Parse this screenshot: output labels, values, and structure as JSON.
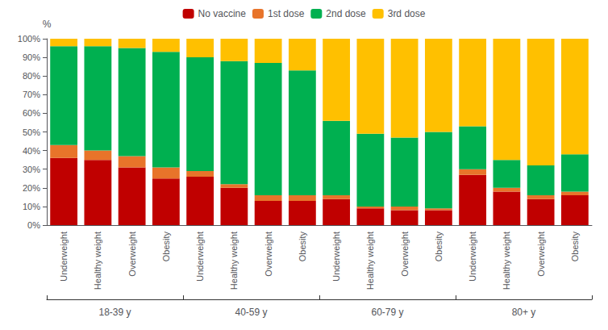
{
  "chart_data": {
    "type": "bar",
    "stacked": true,
    "categories": [
      "Underweight",
      "Healthy weight",
      "Overweight",
      "Obesity",
      "Underweight",
      "Healthy weight",
      "Overweight",
      "Obesity",
      "Underweight",
      "Healthy weight",
      "Overweight",
      "Obesity",
      "Underweight",
      "Healthy weight",
      "Overweight",
      "Obesity"
    ],
    "annotations": [
      "18-39 y",
      "40-59 y",
      "60-79 y",
      "80+ y"
    ],
    "series": [
      {
        "name": "No vaccine",
        "color": "#C00000",
        "values": [
          36,
          35,
          31,
          25,
          26,
          20,
          13,
          13,
          14,
          9,
          8,
          8,
          27,
          18,
          14,
          16
        ]
      },
      {
        "name": "1st dose",
        "color": "#E8742A",
        "values": [
          7,
          5,
          6,
          6,
          3,
          2,
          3,
          3,
          2,
          1,
          2,
          1,
          3,
          2,
          2,
          2
        ]
      },
      {
        "name": "2nd dose",
        "color": "#00B050",
        "values": [
          53,
          56,
          58,
          62,
          61,
          66,
          71,
          67,
          40,
          39,
          37,
          41,
          23,
          15,
          16,
          20
        ]
      },
      {
        "name": "3rd dose",
        "color": "#FFC000",
        "values": [
          4,
          4,
          5,
          7,
          10,
          12,
          13,
          17,
          44,
          51,
          53,
          50,
          47,
          65,
          68,
          62
        ]
      }
    ],
    "y_label": "%",
    "ylim": [
      0,
      100
    ],
    "yticks": [
      {
        "value": 0,
        "label": "0%"
      },
      {
        "value": 10,
        "label": "10%"
      },
      {
        "value": 20,
        "label": "20%"
      },
      {
        "value": 30,
        "label": "30%"
      },
      {
        "value": 40,
        "label": "40%"
      },
      {
        "value": 50,
        "label": "50%"
      },
      {
        "value": 60,
        "label": "60%"
      },
      {
        "value": 70,
        "label": "70%"
      },
      {
        "value": 80,
        "label": "80%"
      },
      {
        "value": 90,
        "label": "90%"
      },
      {
        "value": 100,
        "label": "100%"
      }
    ],
    "grid": false,
    "legend": "top"
  }
}
